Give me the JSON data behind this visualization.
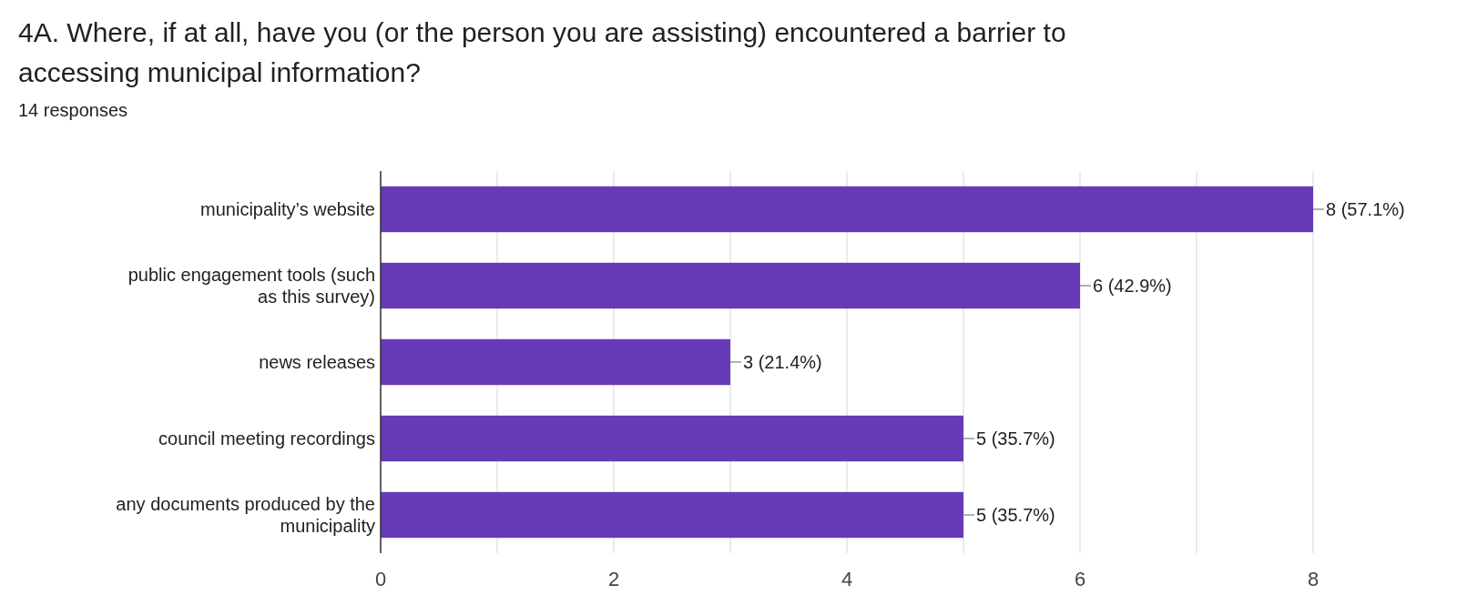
{
  "chart_data": {
    "type": "bar",
    "orientation": "horizontal",
    "title": "4A. Where, if at all, have you (or the person you are assisting) encountered a barrier to accessing municipal information?",
    "subtitle": "14 responses",
    "categories": [
      "municipality’s website",
      "public engagement tools (such as this survey)",
      "news releases",
      "council meeting recordings",
      "any documents produced by the municipality"
    ],
    "values": [
      8,
      6,
      3,
      5,
      5
    ],
    "value_labels": [
      "8 (57.1%)",
      "6 (42.9%)",
      "3 (21.4%)",
      "5 (35.7%)",
      "5 (35.7%)"
    ],
    "color": "#673ab7",
    "xlim": [
      0,
      8
    ],
    "xticks": [
      0,
      {
        "value": 1,
        "label": null
      },
      2,
      {
        "value": 3,
        "label": null
      },
      4,
      {
        "value": 5,
        "label": null
      },
      6,
      {
        "value": 7,
        "label": null
      },
      8
    ],
    "grid": "x"
  }
}
